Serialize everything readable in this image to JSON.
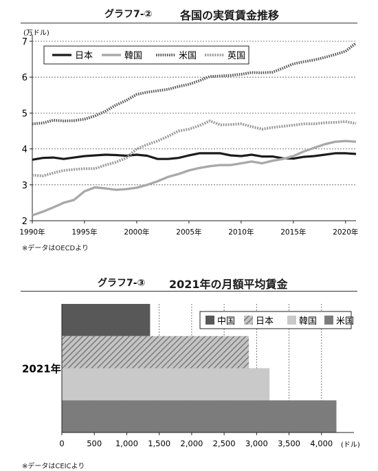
{
  "charts": [
    {
      "label": "グラフ7-②",
      "title": "各国の実質賃金推移",
      "source": "※データはOECDより"
    },
    {
      "label": "グラフ7-③",
      "title": "2021年の月額平均賃金",
      "source": "※データはCEICより"
    }
  ],
  "chart_data": [
    {
      "type": "line",
      "title": "各国の実質賃金推移",
      "ylabel": "(万ドル)",
      "ylim": [
        2,
        7
      ],
      "yticks": [
        "2",
        "3",
        "4",
        "5",
        "6",
        "7"
      ],
      "xticks": [
        "1990年",
        "1995年",
        "2000年",
        "2005年",
        "2010年",
        "2015年",
        "2020年"
      ],
      "xlim": [
        1990,
        2021
      ],
      "grid": "horizontal-dashed",
      "legend_position": "top-left",
      "x": [
        1990,
        1991,
        1992,
        1993,
        1994,
        1995,
        1996,
        1997,
        1998,
        1999,
        2000,
        2001,
        2002,
        2003,
        2004,
        2005,
        2006,
        2007,
        2008,
        2009,
        2010,
        2011,
        2012,
        2013,
        2014,
        2015,
        2016,
        2017,
        2018,
        2019,
        2020,
        2021
      ],
      "series": [
        {
          "name": "日本",
          "style": "solid-black",
          "values": [
            3.7,
            3.75,
            3.76,
            3.72,
            3.76,
            3.8,
            3.82,
            3.84,
            3.83,
            3.81,
            3.84,
            3.81,
            3.72,
            3.72,
            3.75,
            3.82,
            3.88,
            3.88,
            3.88,
            3.82,
            3.8,
            3.84,
            3.79,
            3.79,
            3.74,
            3.73,
            3.78,
            3.8,
            3.84,
            3.88,
            3.88,
            3.86
          ]
        },
        {
          "name": "韓国",
          "style": "solid-gray",
          "values": [
            2.15,
            2.25,
            2.37,
            2.5,
            2.58,
            2.82,
            2.93,
            2.9,
            2.86,
            2.88,
            2.92,
            3.0,
            3.1,
            3.22,
            3.3,
            3.4,
            3.47,
            3.52,
            3.55,
            3.55,
            3.6,
            3.65,
            3.6,
            3.67,
            3.72,
            3.8,
            3.93,
            4.03,
            4.13,
            4.2,
            4.22,
            4.2
          ]
        },
        {
          "name": "米国",
          "style": "dotted-dark",
          "values": [
            4.7,
            4.72,
            4.8,
            4.78,
            4.79,
            4.83,
            4.92,
            5.05,
            5.22,
            5.35,
            5.52,
            5.58,
            5.62,
            5.66,
            5.74,
            5.8,
            5.9,
            6.02,
            6.03,
            6.05,
            6.08,
            6.13,
            6.12,
            6.14,
            6.25,
            6.37,
            6.43,
            6.48,
            6.55,
            6.63,
            6.72,
            6.95
          ]
        },
        {
          "name": "英国",
          "style": "dotted-gray",
          "values": [
            3.27,
            3.25,
            3.33,
            3.4,
            3.43,
            3.45,
            3.45,
            3.55,
            3.63,
            3.75,
            4.0,
            4.12,
            4.22,
            4.35,
            4.5,
            4.55,
            4.65,
            4.78,
            4.67,
            4.68,
            4.7,
            4.62,
            4.55,
            4.6,
            4.63,
            4.66,
            4.7,
            4.7,
            4.73,
            4.74,
            4.76,
            4.71
          ]
        }
      ]
    },
    {
      "type": "bar",
      "orientation": "horizontal",
      "title": "2021年の月額平均賃金",
      "category_label": "2021年",
      "xunit": "(ドル)",
      "xlim": [
        0,
        4250
      ],
      "xticks": [
        "0",
        "500",
        "1,000",
        "1,500",
        "2,000",
        "2,500",
        "3,000",
        "3,500",
        "4,000"
      ],
      "grid": "vertical-dashed",
      "legend_position": "top-right",
      "series": [
        {
          "name": "中国",
          "style": "solid-dark-gray",
          "values": [
            1360
          ]
        },
        {
          "name": "日本",
          "style": "hatched",
          "values": [
            2880
          ]
        },
        {
          "name": "韓国",
          "style": "solid-light-gray",
          "values": [
            3200
          ]
        },
        {
          "name": "米国",
          "style": "solid-mid-gray",
          "values": [
            4230
          ]
        }
      ]
    }
  ]
}
